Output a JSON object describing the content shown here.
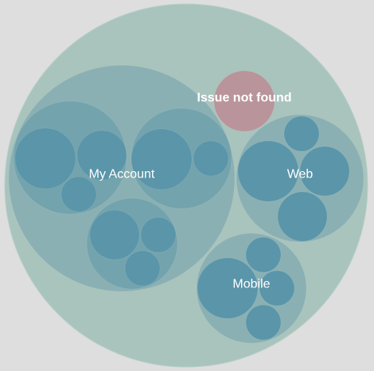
{
  "colors": {
    "background": "#dedede",
    "root": "#a9c3bd",
    "group": "#8ab0b3",
    "subgroup": "#73a3ad",
    "leaf": "#5a95a9",
    "issue": "#b9949a",
    "label": "#ffffff"
  },
  "chart_data": {
    "type": "circle-packing",
    "name": "",
    "children": [
      {
        "name": "My Account",
        "labeled": true,
        "children": [
          {
            "name": "",
            "children": [
              {
                "name": ""
              },
              {
                "name": ""
              },
              {
                "name": ""
              }
            ]
          },
          {
            "name": "",
            "children": [
              {
                "name": ""
              },
              {
                "name": ""
              }
            ]
          },
          {
            "name": "",
            "children": [
              {
                "name": ""
              },
              {
                "name": ""
              },
              {
                "name": ""
              }
            ]
          }
        ]
      },
      {
        "name": "Issue not found",
        "labeled": true,
        "highlight": true
      },
      {
        "name": "Web",
        "labeled": true,
        "children": [
          {
            "name": ""
          },
          {
            "name": ""
          },
          {
            "name": ""
          },
          {
            "name": ""
          }
        ]
      },
      {
        "name": "Mobile",
        "labeled": true,
        "children": [
          {
            "name": ""
          },
          {
            "name": ""
          },
          {
            "name": ""
          },
          {
            "name": ""
          }
        ]
      }
    ]
  }
}
